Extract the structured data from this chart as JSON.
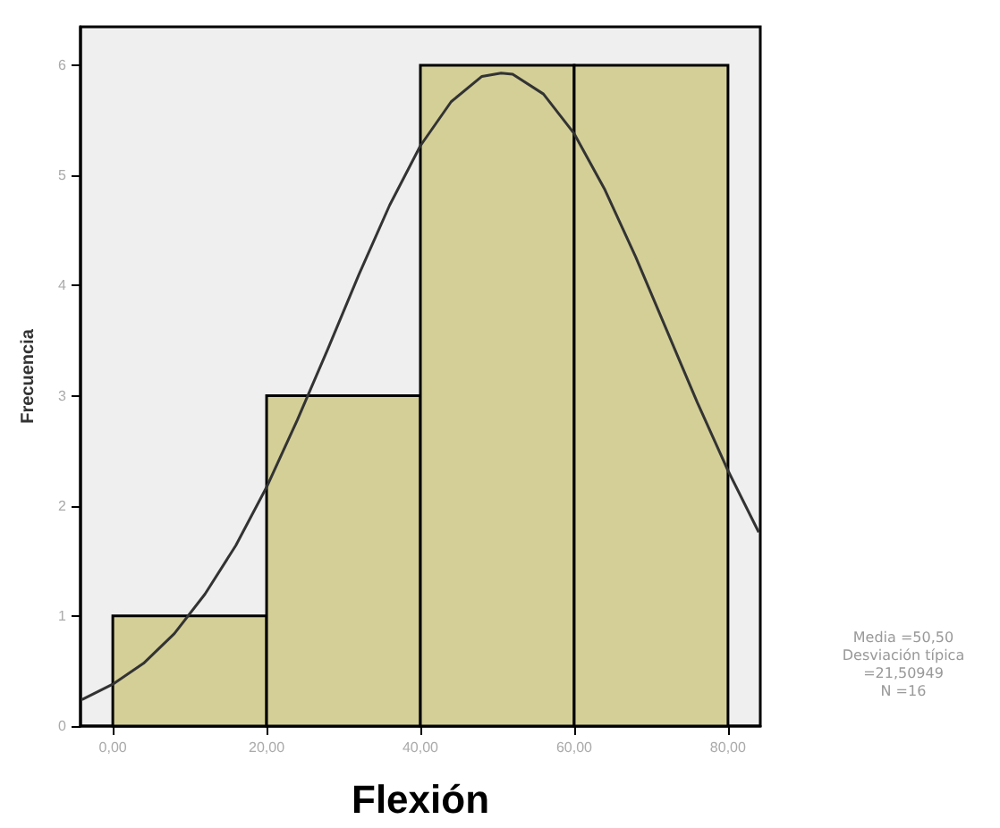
{
  "chart_data": {
    "type": "histogram",
    "xlabel": "Flexión",
    "ylabel": "Frecuencia",
    "bins": [
      0,
      20,
      40,
      60,
      80
    ],
    "values": [
      1,
      3,
      6,
      6
    ],
    "color": "#d3cf97",
    "series": [
      {
        "type": "line",
        "color": "#333333",
        "x": [
          -4,
          0,
          4,
          8,
          12,
          16,
          20,
          24,
          28,
          32,
          36,
          40,
          44,
          48,
          50.5,
          52,
          56,
          60,
          64,
          68,
          72,
          76,
          80,
          84
        ],
        "values": [
          0.24,
          0.38,
          0.57,
          0.84,
          1.2,
          1.64,
          2.17,
          2.78,
          3.43,
          4.1,
          4.73,
          5.27,
          5.67,
          5.9,
          5.93,
          5.92,
          5.74,
          5.38,
          4.87,
          4.26,
          3.6,
          2.94,
          2.32,
          1.76
        ]
      }
    ],
    "xlim": [
      -4.2,
      84.2
    ],
    "xticks": [
      {
        "value": 0,
        "label": "0,00"
      },
      {
        "value": 20,
        "label": "20,00"
      },
      {
        "value": 40,
        "label": "40,00"
      },
      {
        "value": 60,
        "label": "60,00"
      },
      {
        "value": 80,
        "label": "80,00"
      }
    ],
    "ylim": [
      0,
      6.35
    ],
    "yticks": [
      0,
      1,
      2,
      3,
      4,
      5,
      6
    ],
    "grid": false,
    "marker": "none",
    "annotations": [
      "Media =50,50",
      "Desviación típica =21,50949",
      "N =16"
    ]
  }
}
